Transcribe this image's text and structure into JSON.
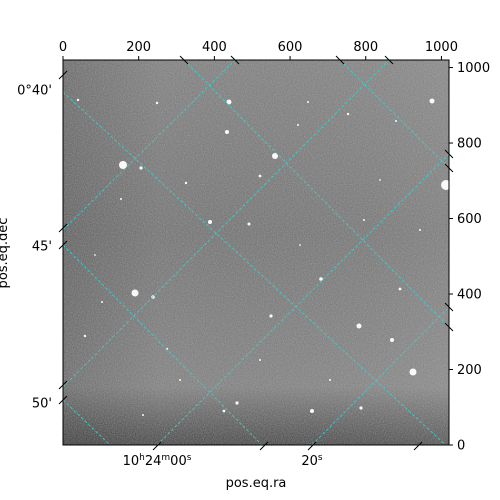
{
  "figure": {
    "xlabel": "pos.eq.ra",
    "ylabel": "pos.eq.dec",
    "grid_color": "#38d3cf",
    "grid_style": "dashed"
  },
  "pixel_axes": {
    "x_range": [
      0,
      1020
    ],
    "y_range": [
      0,
      1020
    ],
    "top_ticks": [
      {
        "value": 0,
        "label": "0"
      },
      {
        "value": 200,
        "label": "200"
      },
      {
        "value": 400,
        "label": "400"
      },
      {
        "value": 600,
        "label": "600"
      },
      {
        "value": 800,
        "label": "800"
      },
      {
        "value": 1000,
        "label": "1000"
      }
    ],
    "right_ticks": [
      {
        "value": 0,
        "label": "0"
      },
      {
        "value": 200,
        "label": "200"
      },
      {
        "value": 400,
        "label": "400"
      },
      {
        "value": 600,
        "label": "600"
      },
      {
        "value": 800,
        "label": "800"
      },
      {
        "value": 1000,
        "label": "1000"
      }
    ]
  },
  "world_axes": {
    "ra_ticks": [
      {
        "label_main": "10",
        "sup1": "h",
        "mid": "24",
        "sup2": "m",
        "tail": "00",
        "sup3": "s"
      },
      {
        "label_main": "20",
        "sup1": "s",
        "mid": "",
        "sup2": "",
        "tail": "",
        "sup3": ""
      }
    ],
    "dec_ticks": [
      {
        "label": "0°40'"
      },
      {
        "label": "45'"
      },
      {
        "label": "50'"
      }
    ]
  }
}
